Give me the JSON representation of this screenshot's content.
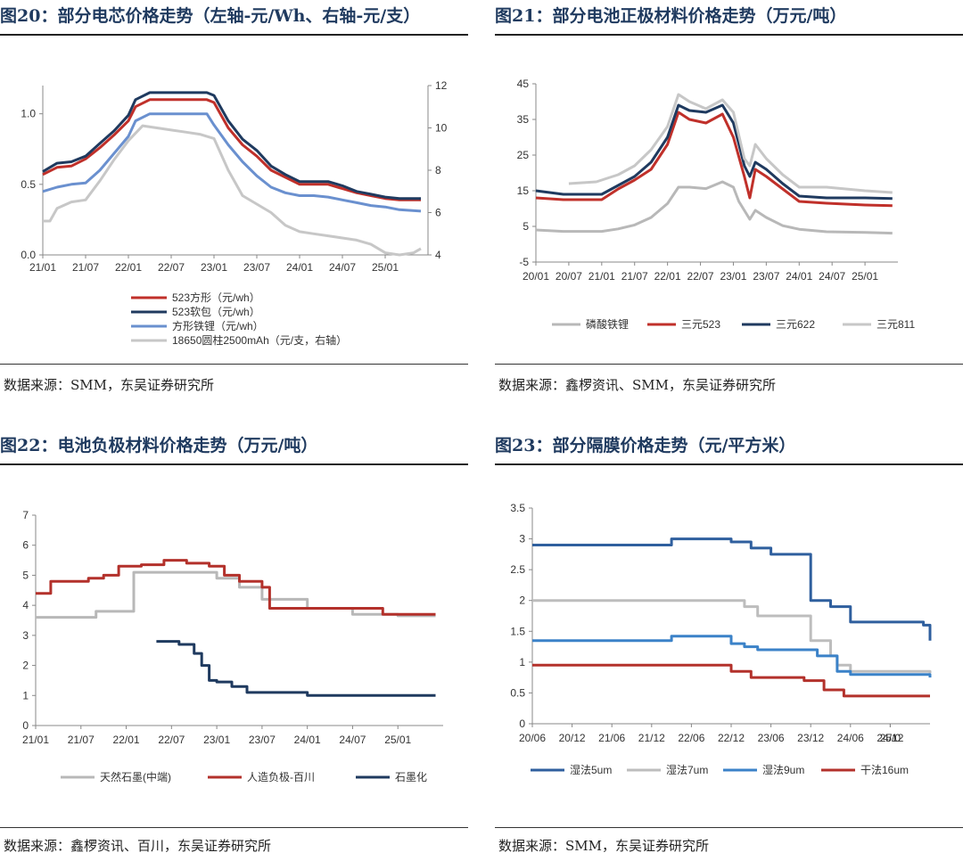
{
  "panels": [
    {
      "title": "图20：部分电芯价格走势（左轴-元/Wh、右轴-元/支）",
      "source": "数据来源：SMM，东吴证券研究所"
    },
    {
      "title": "图21：部分电池正极材料价格走势（万元/吨）",
      "source": "数据来源：鑫椤资讯、SMM，东吴证券研究所"
    },
    {
      "title": "图22：电池负极材料价格走势（万元/吨）",
      "source": "数据来源：鑫椤资讯、百川，东吴证券研究所"
    },
    {
      "title": "图23：部分隔膜价格走势（元/平方米）",
      "source": "数据来源：SMM，东吴证券研究所"
    }
  ],
  "chart_data": [
    {
      "type": "line",
      "x_ticks": [
        "21/01",
        "21/07",
        "22/01",
        "22/07",
        "23/01",
        "23/07",
        "24/01",
        "24/07",
        "25/01"
      ],
      "x_range": [
        "2021-01",
        "2025-07"
      ],
      "ylim": [
        0,
        1.2
      ],
      "y_ticks": [
        0.0,
        0.5,
        1.0
      ],
      "y_tick_labels": [
        "0.0",
        "0.5",
        "1.0"
      ],
      "y2lim": [
        4,
        12
      ],
      "y2_ticks": [
        4,
        6,
        8,
        10,
        12
      ],
      "legend_position": "bottom",
      "series": [
        {
          "name": "523方形（元/wh）",
          "color": "#c0302a",
          "axis": "left",
          "x": [
            "2021-01",
            "2021-03",
            "2021-05",
            "2021-07",
            "2021-09",
            "2021-11",
            "2022-01",
            "2022-02",
            "2022-04",
            "2022-06",
            "2022-08",
            "2022-10",
            "2022-12",
            "2023-01",
            "2023-03",
            "2023-05",
            "2023-07",
            "2023-09",
            "2023-11",
            "2024-01",
            "2024-03",
            "2024-05",
            "2024-07",
            "2024-09",
            "2024-11",
            "2025-01",
            "2025-03",
            "2025-06"
          ],
          "y": [
            0.57,
            0.62,
            0.63,
            0.68,
            0.76,
            0.85,
            0.95,
            1.05,
            1.1,
            1.1,
            1.1,
            1.1,
            1.1,
            1.08,
            0.9,
            0.78,
            0.7,
            0.6,
            0.55,
            0.5,
            0.5,
            0.5,
            0.47,
            0.44,
            0.42,
            0.4,
            0.39,
            0.39
          ]
        },
        {
          "name": "523软包（元/wh）",
          "color": "#1f3a5f",
          "axis": "left",
          "x": [
            "2021-01",
            "2021-03",
            "2021-05",
            "2021-07",
            "2021-09",
            "2021-11",
            "2022-01",
            "2022-02",
            "2022-04",
            "2022-06",
            "2022-08",
            "2022-10",
            "2022-12",
            "2023-01",
            "2023-03",
            "2023-05",
            "2023-07",
            "2023-09",
            "2023-11",
            "2024-01",
            "2024-03",
            "2024-05",
            "2024-07",
            "2024-09",
            "2024-11",
            "2025-01",
            "2025-03",
            "2025-06"
          ],
          "y": [
            0.59,
            0.65,
            0.66,
            0.7,
            0.79,
            0.88,
            0.99,
            1.1,
            1.15,
            1.15,
            1.15,
            1.15,
            1.15,
            1.13,
            0.95,
            0.82,
            0.74,
            0.63,
            0.57,
            0.52,
            0.52,
            0.52,
            0.49,
            0.45,
            0.43,
            0.41,
            0.4,
            0.4
          ]
        },
        {
          "name": "方形铁锂（元/wh）",
          "color": "#6a90cf",
          "axis": "left",
          "x": [
            "2021-01",
            "2021-03",
            "2021-05",
            "2021-07",
            "2021-09",
            "2021-11",
            "2022-01",
            "2022-02",
            "2022-04",
            "2022-06",
            "2022-08",
            "2022-10",
            "2022-12",
            "2023-01",
            "2023-03",
            "2023-05",
            "2023-07",
            "2023-09",
            "2023-11",
            "2024-01",
            "2024-03",
            "2024-05",
            "2024-07",
            "2024-09",
            "2024-11",
            "2025-01",
            "2025-03",
            "2025-06"
          ],
          "y": [
            0.45,
            0.48,
            0.5,
            0.51,
            0.6,
            0.72,
            0.84,
            0.95,
            1.0,
            1.0,
            1.0,
            1.0,
            1.0,
            0.92,
            0.78,
            0.66,
            0.56,
            0.48,
            0.44,
            0.42,
            0.42,
            0.41,
            0.39,
            0.37,
            0.35,
            0.34,
            0.32,
            0.31
          ]
        },
        {
          "name": "18650圆柱2500mAh（元/支，右轴）",
          "color": "#c7c7c7",
          "axis": "right",
          "x": [
            "2021-01",
            "2021-02",
            "2021-03",
            "2021-05",
            "2021-07",
            "2021-09",
            "2021-11",
            "2022-01",
            "2022-03",
            "2022-05",
            "2022-07",
            "2022-09",
            "2022-11",
            "2023-01",
            "2023-03",
            "2023-05",
            "2023-07",
            "2023-09",
            "2023-11",
            "2024-01",
            "2024-03",
            "2024-05",
            "2024-07",
            "2024-09",
            "2024-11",
            "2025-01",
            "2025-03",
            "2025-05",
            "2025-06"
          ],
          "y": [
            5.6,
            5.6,
            6.2,
            6.5,
            6.6,
            7.5,
            8.5,
            9.4,
            10.1,
            10.0,
            9.9,
            9.8,
            9.7,
            9.5,
            8.0,
            6.8,
            6.4,
            6.0,
            5.4,
            5.1,
            5.0,
            4.9,
            4.8,
            4.7,
            4.5,
            4.1,
            4.0,
            4.1,
            4.3
          ]
        }
      ]
    },
    {
      "type": "line",
      "x_ticks": [
        "20/01",
        "20/07",
        "21/01",
        "21/07",
        "22/01",
        "22/07",
        "23/01",
        "23/07",
        "24/01",
        "24/07",
        "25/01"
      ],
      "x_range": [
        "2020-01",
        "2025-07"
      ],
      "ylim": [
        -5,
        45
      ],
      "y_ticks": [
        -5,
        5,
        15,
        25,
        35,
        45
      ],
      "legend_position": "bottom",
      "series": [
        {
          "name": "磷酸铁锂",
          "color": "#b8b8b8",
          "x": [
            "2020-01",
            "2020-06",
            "2021-01",
            "2021-04",
            "2021-07",
            "2021-10",
            "2022-01",
            "2022-03",
            "2022-05",
            "2022-08",
            "2022-11",
            "2023-01",
            "2023-02",
            "2023-04",
            "2023-05",
            "2023-07",
            "2023-10",
            "2024-01",
            "2024-06",
            "2025-01",
            "2025-06"
          ],
          "y": [
            4,
            3.6,
            3.6,
            4.3,
            5.4,
            7.5,
            11.4,
            16,
            16,
            15.6,
            17.5,
            16,
            12,
            7,
            9.5,
            7.5,
            5.2,
            4.2,
            3.5,
            3.3,
            3.1
          ]
        },
        {
          "name": "三元523",
          "color": "#c0302a",
          "x": [
            "2020-01",
            "2020-06",
            "2021-01",
            "2021-04",
            "2021-07",
            "2021-10",
            "2022-01",
            "2022-03",
            "2022-05",
            "2022-08",
            "2022-11",
            "2023-01",
            "2023-03",
            "2023-04",
            "2023-05",
            "2023-07",
            "2023-10",
            "2024-01",
            "2024-06",
            "2025-01",
            "2025-06"
          ],
          "y": [
            13,
            12.5,
            12.5,
            15.5,
            18,
            21,
            28,
            37,
            35,
            34,
            36.5,
            30,
            19,
            13,
            21,
            19,
            15.5,
            12,
            11.5,
            11,
            10.8
          ]
        },
        {
          "name": "三元622",
          "color": "#1f3a5f",
          "x": [
            "2020-01",
            "2020-06",
            "2021-01",
            "2021-04",
            "2021-07",
            "2021-10",
            "2022-01",
            "2022-03",
            "2022-05",
            "2022-08",
            "2022-11",
            "2023-01",
            "2023-03",
            "2023-04",
            "2023-05",
            "2023-07",
            "2023-10",
            "2024-01",
            "2024-06",
            "2025-01",
            "2025-06"
          ],
          "y": [
            15,
            14,
            14,
            16.5,
            19,
            23,
            30,
            39,
            37.5,
            37,
            39,
            34,
            22,
            19,
            23,
            21,
            17,
            13.5,
            13,
            13,
            12.8
          ]
        },
        {
          "name": "三元811",
          "color": "#c7c7c7",
          "x": [
            "2020-07",
            "2020-12",
            "2021-04",
            "2021-07",
            "2021-10",
            "2022-01",
            "2022-03",
            "2022-05",
            "2022-08",
            "2022-11",
            "2023-01",
            "2023-03",
            "2023-04",
            "2023-05",
            "2023-07",
            "2023-10",
            "2024-01",
            "2024-06",
            "2025-01",
            "2025-06"
          ],
          "y": [
            17,
            17.5,
            19.5,
            22,
            26.5,
            33,
            42,
            40,
            38,
            40.5,
            37,
            24,
            22,
            28,
            24,
            19.5,
            16,
            16,
            15,
            14.5
          ]
        }
      ]
    },
    {
      "type": "line",
      "x_ticks": [
        "21/01",
        "21/07",
        "22/01",
        "22/07",
        "23/01",
        "23/07",
        "24/01",
        "24/07",
        "25/01"
      ],
      "x_range": [
        "2021-01",
        "2025-07"
      ],
      "ylim": [
        0,
        7
      ],
      "y_ticks": [
        0,
        1,
        2,
        3,
        4,
        5,
        6,
        7
      ],
      "legend_position": "bottom",
      "series": [
        {
          "name": "天然石墨(中端)",
          "color": "#b8b8b8",
          "step": true,
          "x": [
            "2021-01",
            "2021-09",
            "2022-02",
            "2022-11",
            "2023-01",
            "2023-04",
            "2023-07",
            "2023-10",
            "2024-01",
            "2024-07",
            "2025-01",
            "2025-06"
          ],
          "y": [
            3.6,
            3.8,
            5.1,
            5.1,
            4.9,
            4.6,
            4.2,
            4.2,
            3.9,
            3.7,
            3.65,
            3.65
          ]
        },
        {
          "name": "人造负极-百川",
          "color": "#b3312b",
          "step": true,
          "x": [
            "2021-01",
            "2021-03",
            "2021-08",
            "2021-10",
            "2021-12",
            "2022-03",
            "2022-06",
            "2022-09",
            "2022-12",
            "2023-02",
            "2023-04",
            "2023-07",
            "2023-08",
            "2024-09",
            "2024-11",
            "2025-06"
          ],
          "y": [
            4.4,
            4.8,
            4.9,
            5.0,
            5.3,
            5.35,
            5.5,
            5.4,
            5.3,
            5.0,
            4.8,
            4.6,
            3.9,
            3.9,
            3.7,
            3.7
          ]
        },
        {
          "name": "石墨化",
          "color": "#1f3a5f",
          "step": true,
          "x": [
            "2022-05",
            "2022-08",
            "2022-10",
            "2022-11",
            "2022-12",
            "2023-01",
            "2023-03",
            "2023-05",
            "2023-08",
            "2024-01",
            "2024-06",
            "2025-01",
            "2025-06"
          ],
          "y": [
            2.8,
            2.7,
            2.4,
            2.0,
            1.5,
            1.45,
            1.3,
            1.1,
            1.1,
            1.0,
            1.0,
            1.0,
            1.0
          ]
        }
      ]
    },
    {
      "type": "line",
      "x_ticks": [
        "20/06",
        "20/12",
        "21/06",
        "21/12",
        "22/06",
        "22/12",
        "23/06",
        "23/12",
        "24/06",
        "24/12",
        "25/0"
      ],
      "x_range": [
        "2020-06",
        "2025-06"
      ],
      "ylim": [
        0,
        3.5
      ],
      "y_ticks": [
        0,
        0.5,
        1,
        1.5,
        2,
        2.5,
        3,
        3.5
      ],
      "y_tick_labels": [
        "0",
        "0.5",
        "1",
        "1.5",
        "2",
        "2.5",
        "3",
        "3.5"
      ],
      "legend_position": "bottom",
      "series": [
        {
          "name": "湿法5um",
          "color": "#2f5f9e",
          "step": true,
          "x": [
            "2020-06",
            "2022-03",
            "2022-12",
            "2023-03",
            "2023-06",
            "2023-11",
            "2023-12",
            "2024-03",
            "2024-06",
            "2025-05",
            "2025-06"
          ],
          "y": [
            2.9,
            3.0,
            2.95,
            2.85,
            2.75,
            2.75,
            2.0,
            1.9,
            1.65,
            1.6,
            1.35
          ]
        },
        {
          "name": "湿法7um",
          "color": "#bdbdbd",
          "step": true,
          "x": [
            "2020-06",
            "2022-12",
            "2023-02",
            "2023-04",
            "2023-11",
            "2023-12",
            "2024-03",
            "2024-04",
            "2024-06",
            "2025-06"
          ],
          "y": [
            2.0,
            2.0,
            1.9,
            1.75,
            1.75,
            1.35,
            1.1,
            0.95,
            0.85,
            0.82
          ]
        },
        {
          "name": "湿法9um",
          "color": "#3b82c8",
          "step": true,
          "x": [
            "2020-06",
            "2022-03",
            "2022-12",
            "2023-02",
            "2023-04",
            "2023-11",
            "2024-01",
            "2024-04",
            "2024-06",
            "2025-06"
          ],
          "y": [
            1.35,
            1.42,
            1.3,
            1.25,
            1.2,
            1.2,
            1.1,
            0.85,
            0.8,
            0.75
          ]
        },
        {
          "name": "干法16um",
          "color": "#b3312b",
          "step": true,
          "x": [
            "2020-06",
            "2022-06",
            "2022-12",
            "2023-03",
            "2023-11",
            "2024-02",
            "2024-05",
            "2025-06"
          ],
          "y": [
            0.95,
            0.95,
            0.85,
            0.75,
            0.7,
            0.55,
            0.45,
            0.45
          ]
        }
      ]
    }
  ]
}
